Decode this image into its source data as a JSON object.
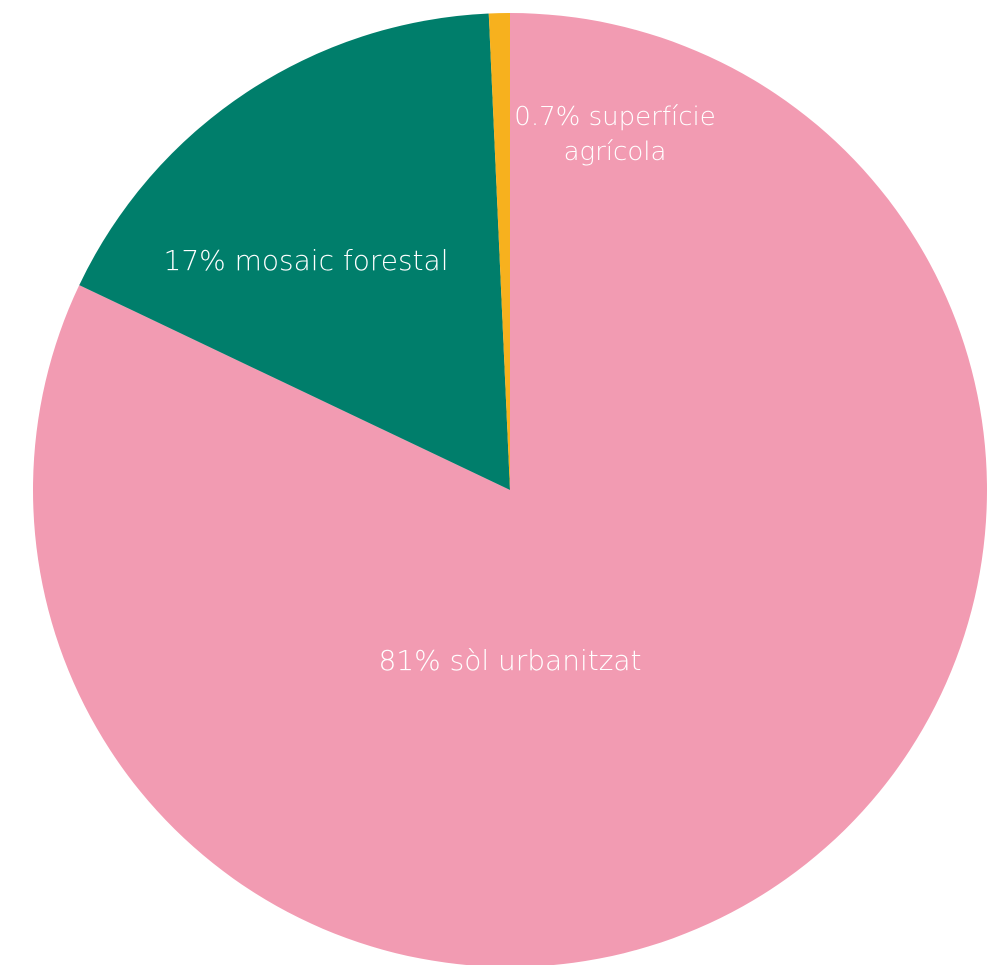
{
  "chart_data": {
    "type": "pie",
    "title": "",
    "slices": [
      {
        "label": "sòl urbanitzat",
        "value": 81,
        "display": "81% sòl urbanitzat",
        "color": "#f29bb2"
      },
      {
        "label": "mosaic forestal",
        "value": 17,
        "display": "17% mosaic forestal",
        "color": "#007e6b"
      },
      {
        "label": "superfície agrícola",
        "value": 0.7,
        "display_lines": [
          "0.7% superfície",
          "agrícola"
        ],
        "color": "#f7b11e"
      }
    ],
    "start_angle_deg": 0,
    "direction": "clockwise"
  }
}
